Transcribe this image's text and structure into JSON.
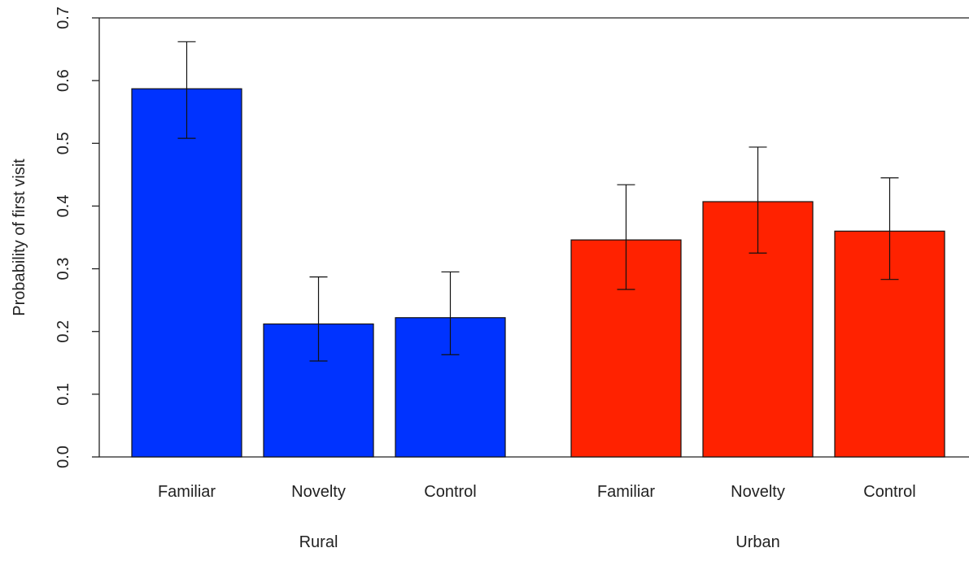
{
  "chart_data": {
    "type": "bar",
    "title": "",
    "xlabel": "",
    "ylabel": "Probability of first visit",
    "ylim": [
      0,
      0.7
    ],
    "yticks": [
      "0.0",
      "0.1",
      "0.2",
      "0.3",
      "0.4",
      "0.5",
      "0.6",
      "0.7"
    ],
    "grid": false,
    "legend": "none",
    "groups": [
      {
        "label": "Rural",
        "color": "#0033ff",
        "bars": [
          {
            "category": "Familiar",
            "value": 0.587,
            "err_low": 0.508,
            "err_high": 0.662
          },
          {
            "category": "Novelty",
            "value": 0.212,
            "err_low": 0.153,
            "err_high": 0.287
          },
          {
            "category": "Control",
            "value": 0.222,
            "err_low": 0.163,
            "err_high": 0.295
          }
        ]
      },
      {
        "label": "Urban",
        "color": "#ff2200",
        "bars": [
          {
            "category": "Familiar",
            "value": 0.346,
            "err_low": 0.267,
            "err_high": 0.434
          },
          {
            "category": "Novelty",
            "value": 0.407,
            "err_low": 0.325,
            "err_high": 0.494
          },
          {
            "category": "Control",
            "value": 0.36,
            "err_low": 0.283,
            "err_high": 0.445
          }
        ]
      }
    ]
  }
}
